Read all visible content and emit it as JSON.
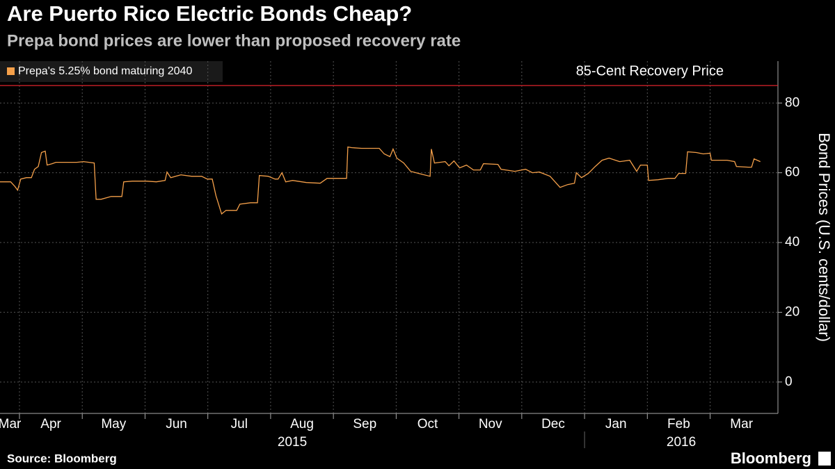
{
  "chart_data": {
    "type": "line",
    "title": "Are Puerto Rico Electric Bonds Cheap?",
    "subtitle": "Prepa bond prices are lower than proposed recovery rate",
    "y_axis_label": "Bond Prices (U.S. cents/dollar)",
    "source": "Source: Bloomberg",
    "brand": "Bloomberg",
    "legend_position": "upper left",
    "grid": true,
    "reference_line": {
      "value": 85,
      "label": "85-Cent Recovery Price",
      "color": "#e0242c"
    },
    "xlim": [
      0.69,
      13.08
    ],
    "xticks": [
      {
        "value": 0,
        "label": "Mar"
      },
      {
        "value": 1,
        "label": "Apr"
      },
      {
        "value": 2,
        "label": "May"
      },
      {
        "value": 3,
        "label": "Jun"
      },
      {
        "value": 4,
        "label": "Jul"
      },
      {
        "value": 5,
        "label": "Aug"
      },
      {
        "value": 6,
        "label": "Sep"
      },
      {
        "value": 7,
        "label": "Oct"
      },
      {
        "value": 8,
        "label": "Nov"
      },
      {
        "value": 9,
        "label": "Dec"
      },
      {
        "value": 10,
        "label": "Jan"
      },
      {
        "value": 11,
        "label": "Feb"
      },
      {
        "value": 12,
        "label": "Mar"
      }
    ],
    "year_ticks": [
      {
        "value": 0,
        "label": "2015"
      },
      {
        "value": 10,
        "label": "2016"
      }
    ],
    "ylim": [
      -9,
      92
    ],
    "yticks": [
      0,
      20,
      40,
      60,
      80
    ],
    "y_axis_side": "right",
    "x": [
      0.69,
      0.86,
      0.93,
      0.97,
      1.02,
      1.11,
      1.19,
      1.24,
      1.3,
      1.35,
      1.41,
      1.44,
      1.52,
      1.58,
      1.74,
      1.91,
      2.02,
      2.19,
      2.22,
      2.3,
      2.46,
      2.63,
      2.66,
      2.8,
      3.02,
      3.18,
      3.32,
      3.35,
      3.41,
      3.57,
      3.74,
      3.9,
      3.99,
      4.07,
      4.13,
      4.22,
      4.29,
      4.46,
      4.51,
      4.68,
      4.79,
      4.82,
      4.96,
      5.07,
      5.12,
      5.18,
      5.24,
      5.35,
      5.57,
      5.79,
      5.9,
      6.12,
      6.21,
      6.23,
      6.29,
      6.45,
      6.73,
      6.81,
      6.9,
      6.95,
      7.01,
      7.12,
      7.23,
      7.4,
      7.54,
      7.56,
      7.61,
      7.78,
      7.84,
      7.92,
      8.01,
      8.12,
      8.23,
      8.34,
      8.39,
      8.62,
      8.67,
      8.89,
      9.06,
      9.17,
      9.28,
      9.45,
      9.61,
      9.73,
      9.84,
      9.87,
      9.95,
      10.06,
      10.17,
      10.28,
      10.39,
      10.56,
      10.72,
      10.83,
      10.89,
      11.0,
      11.02,
      11.17,
      11.33,
      11.44,
      11.5,
      11.61,
      11.64,
      11.78,
      11.89,
      12.0,
      12.02,
      12.27,
      12.39,
      12.42,
      12.61,
      12.66,
      12.7,
      12.8
    ],
    "series": [
      {
        "name": "Prepa's 5.25% bond maturing 2040",
        "color": "#f5a04a",
        "values": [
          57.4,
          57.4,
          56,
          55,
          58.2,
          58.6,
          58.6,
          61,
          61.8,
          65.8,
          66.2,
          62.2,
          62.6,
          63,
          63,
          63,
          63.2,
          62.8,
          52.4,
          52.4,
          53.2,
          53.2,
          57.4,
          57.6,
          57.6,
          57.4,
          57.8,
          60.2,
          58.6,
          59.4,
          59,
          59,
          58.2,
          58.2,
          53.4,
          48.2,
          49.2,
          49.2,
          51,
          51.4,
          51.4,
          59.2,
          59,
          58.2,
          58.2,
          60,
          57.4,
          57.8,
          57.2,
          57,
          58.4,
          58.4,
          58.4,
          67.4,
          67.2,
          67,
          67,
          65.4,
          64.6,
          66.8,
          64.2,
          62.8,
          60.4,
          59.6,
          59,
          66.8,
          62.8,
          63.2,
          62,
          63.4,
          61.4,
          62.2,
          60.8,
          60.8,
          62.6,
          62.4,
          61,
          60.4,
          61,
          60,
          60.2,
          59,
          55.8,
          56.6,
          57,
          60,
          58.6,
          59.8,
          61.8,
          63.6,
          64.2,
          63.2,
          63.6,
          60.4,
          62.2,
          62.2,
          57.8,
          58,
          58.4,
          58.4,
          59.8,
          59.8,
          66,
          65.8,
          65.4,
          65.6,
          63.6,
          63.6,
          63.2,
          61.8,
          61.6,
          61.6,
          64,
          63.2
        ]
      }
    ]
  }
}
